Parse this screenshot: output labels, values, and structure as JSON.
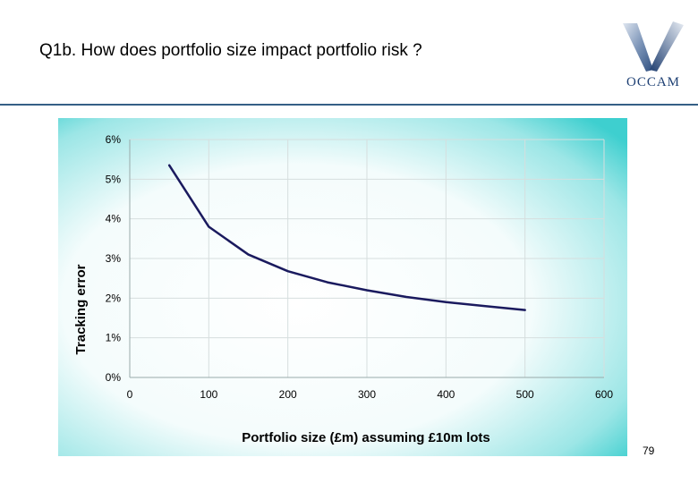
{
  "slide": {
    "title": "Q1b. How does portfolio size impact portfolio risk ?",
    "page_number": "79",
    "logo_text": "OCCAM"
  },
  "colors": {
    "background_teal": "#3ecfcf",
    "line": "#1a1a5e",
    "divider": "#355f86",
    "logo": "#1d3f73"
  },
  "chart_data": {
    "type": "line",
    "xlabel": "Portfolio size (£m) assuming £10m lots",
    "ylabel": "Tracking error",
    "xlim": [
      0,
      600
    ],
    "ylim": [
      0,
      6
    ],
    "x_ticks": [
      "0",
      "100",
      "200",
      "300",
      "400",
      "500",
      "600"
    ],
    "y_ticks": [
      "0%",
      "1%",
      "2%",
      "3%",
      "4%",
      "5%",
      "6%"
    ],
    "grid": true,
    "series": [
      {
        "x": [
          50,
          100,
          150,
          200,
          250,
          300,
          350,
          400,
          450,
          500
        ],
        "values": [
          5.35,
          3.8,
          3.1,
          2.68,
          2.4,
          2.2,
          2.03,
          1.9,
          1.8,
          1.7
        ]
      }
    ]
  }
}
